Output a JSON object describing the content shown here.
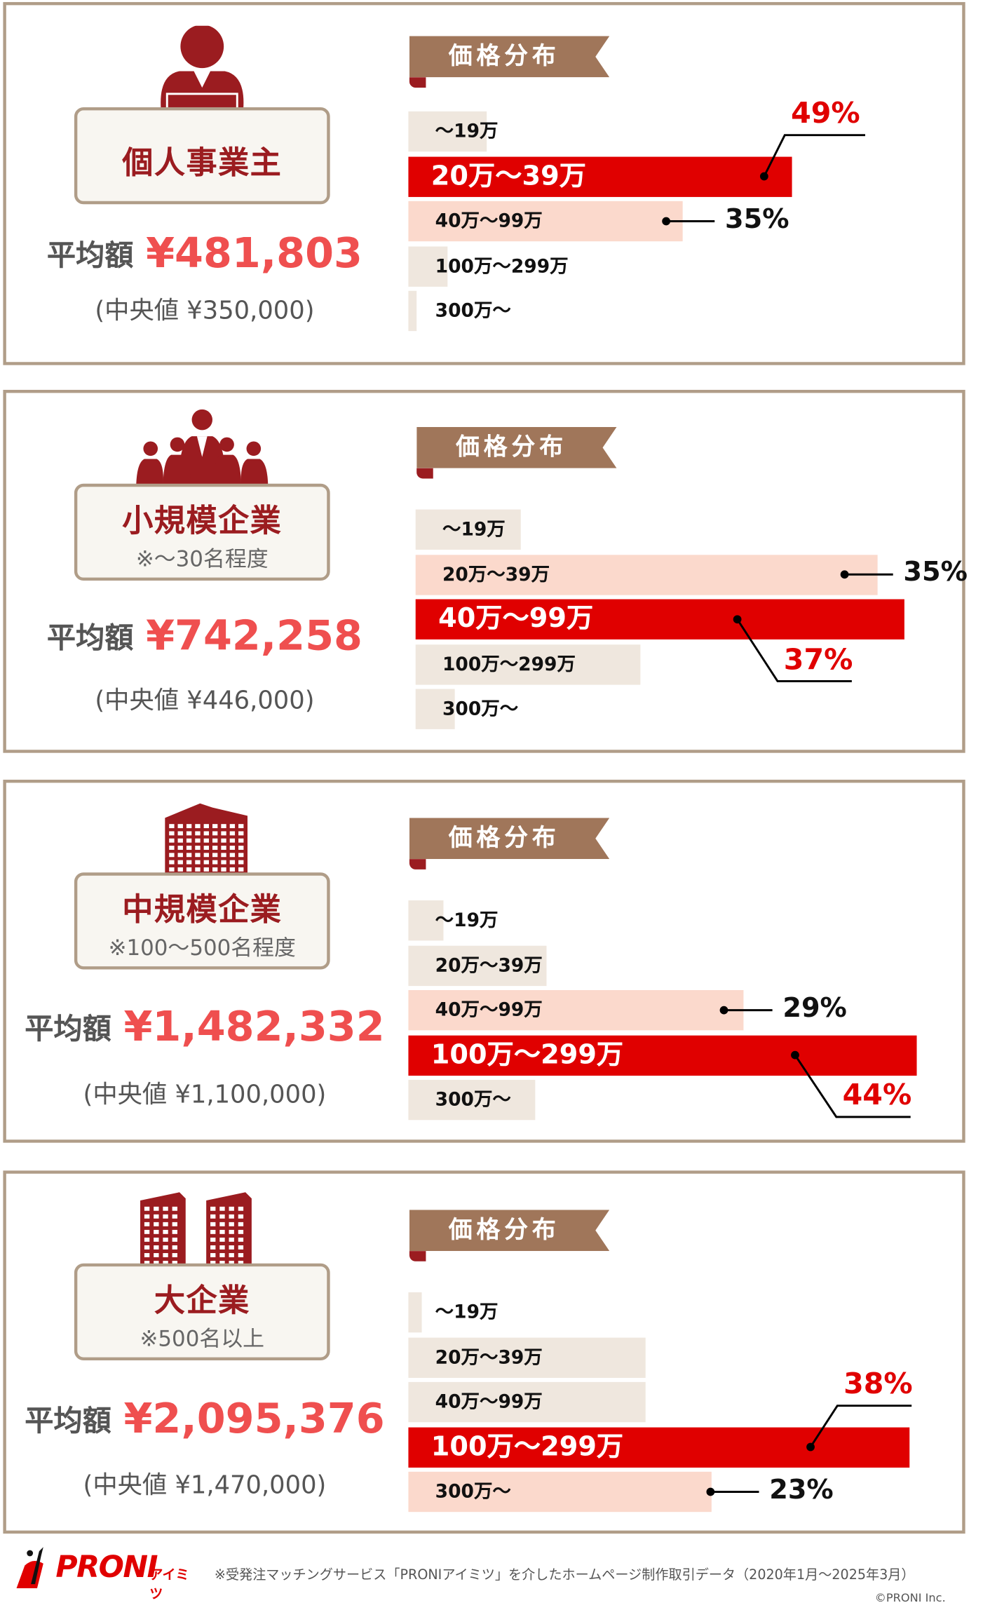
{
  "colors": {
    "highlight": "#e00000",
    "second": "#fbd9cc",
    "other": "#efe7de",
    "frame": "#b09d88",
    "banner": "#a0765a",
    "brand": "#9b1c20",
    "amount": "#ef4f4f"
  },
  "panels": [
    {
      "icon": "person-at-desk-icon",
      "title": "個人事業主",
      "subtitle": "",
      "avg_label": "平均額",
      "avg_value": "¥481,803",
      "median_text": "(中央値 ¥350,000)",
      "banner": "価格分布"
    },
    {
      "icon": "group-of-people-icon",
      "title": "小規模企業",
      "subtitle": "※〜30名程度",
      "avg_label": "平均額",
      "avg_value": "¥742,258",
      "median_text": "(中央値 ¥446,000)",
      "banner": "価格分布"
    },
    {
      "icon": "office-building-icon",
      "title": "中規模企業",
      "subtitle": "※100〜500名程度",
      "avg_label": "平均額",
      "avg_value": "¥1,482,332",
      "median_text": "(中央値 ¥1,100,000)",
      "banner": "価格分布"
    },
    {
      "icon": "twin-buildings-icon",
      "title": "大企業",
      "subtitle": "※500名以上",
      "avg_label": "平均額",
      "avg_value": "¥2,095,376",
      "median_text": "(中央値 ¥1,470,000)",
      "banner": "価格分布"
    }
  ],
  "chart_data": [
    {
      "type": "bar",
      "orientation": "horizontal",
      "title": "価格分布",
      "categories": [
        "〜19万",
        "20万〜39万",
        "40万〜99万",
        "100万〜299万",
        "300万〜"
      ],
      "values": [
        10,
        49,
        35,
        5,
        1
      ],
      "value_labels": [
        "",
        "49%",
        "35%",
        "",
        ""
      ],
      "unit": "%"
    },
    {
      "type": "bar",
      "orientation": "horizontal",
      "title": "価格分布",
      "categories": [
        "〜19万",
        "20万〜39万",
        "40万〜99万",
        "100万〜299万",
        "300万〜"
      ],
      "values": [
        8,
        35,
        37,
        17,
        3
      ],
      "value_labels": [
        "",
        "35%",
        "37%",
        "",
        ""
      ],
      "unit": "%"
    },
    {
      "type": "bar",
      "orientation": "horizontal",
      "title": "価格分布",
      "categories": [
        "〜19万",
        "20万〜39万",
        "40万〜99万",
        "100万〜299万",
        "300万〜"
      ],
      "values": [
        3,
        12,
        29,
        44,
        11
      ],
      "value_labels": [
        "",
        "",
        "29%",
        "44%",
        ""
      ],
      "unit": "%"
    },
    {
      "type": "bar",
      "orientation": "horizontal",
      "title": "価格分布",
      "categories": [
        "〜19万",
        "20万〜39万",
        "40万〜99万",
        "100万〜299万",
        "300万〜"
      ],
      "values": [
        1,
        18,
        18,
        38,
        23
      ],
      "value_labels": [
        "",
        "",
        "",
        "38%",
        "23%"
      ],
      "unit": "%"
    }
  ],
  "footer": {
    "logo_text": "PRONI",
    "logo_sub": "アイミツ",
    "note": "※受発注マッチングサービス「PRONIアイミツ」を介したホームページ制作取引データ（2020年1月〜2025年3月）",
    "copyright": "©PRONI Inc."
  }
}
